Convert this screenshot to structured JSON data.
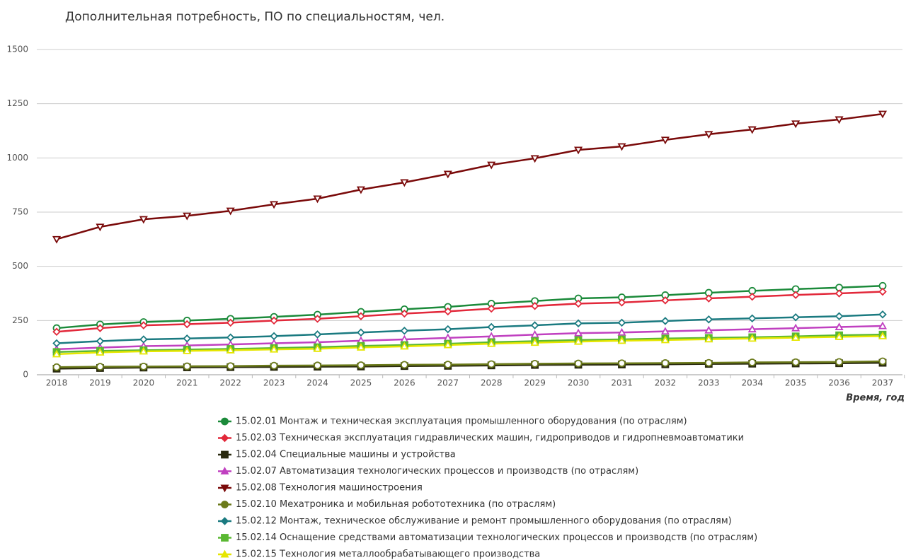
{
  "chart_data": {
    "type": "line",
    "title": "Дополнительная потребность, ПО по специальностям, чел.",
    "x_label": "Время, год",
    "categories": [
      "2018",
      "2019",
      "2020",
      "2021",
      "2022",
      "2023",
      "2024",
      "2025",
      "2026",
      "2027",
      "2028",
      "2029",
      "2030",
      "2031",
      "2032",
      "2033",
      "2034",
      "2035",
      "2036",
      "2037"
    ],
    "ylim": [
      0,
      1500
    ],
    "yticks": [
      0,
      250,
      500,
      750,
      1000,
      1250,
      1500
    ],
    "grid": true,
    "series": [
      {
        "name": "15.02.01 Монтаж и техническая эксплуатация промышленного оборудования (по отраслям)",
        "color": "#1b8a3a",
        "marker": "circle",
        "values": [
          215,
          232,
          243,
          250,
          258,
          267,
          277,
          290,
          302,
          313,
          328,
          340,
          352,
          357,
          367,
          378,
          387,
          395,
          402,
          410
        ]
      },
      {
        "name": "15.02.03 Техническая эксплуатация гидравлических машин, гидроприводов и гидропневмоавтоматики",
        "color": "#e2283a",
        "marker": "diamond",
        "values": [
          198,
          215,
          228,
          233,
          240,
          250,
          258,
          270,
          282,
          292,
          305,
          317,
          328,
          333,
          343,
          352,
          360,
          368,
          375,
          383
        ]
      },
      {
        "name": "15.02.04 Специальные машины и устройства",
        "color": "#2b2b10",
        "marker": "square",
        "values": [
          28,
          31,
          33,
          34,
          35,
          36,
          37,
          38,
          40,
          41,
          43,
          45,
          46,
          47,
          48,
          50,
          51,
          52,
          53,
          55
        ]
      },
      {
        "name": "15.02.07 Автоматизация технологических процессов и производств (по отраслям)",
        "color": "#c040c0",
        "marker": "triangle-up",
        "values": [
          118,
          125,
          132,
          135,
          140,
          145,
          150,
          157,
          163,
          170,
          177,
          185,
          192,
          195,
          200,
          205,
          210,
          215,
          220,
          225
        ]
      },
      {
        "name": "15.02.08 Технология машиностроения",
        "color": "#7a0a0a",
        "marker": "triangle-down",
        "values": [
          625,
          682,
          717,
          733,
          756,
          786,
          812,
          854,
          887,
          926,
          968,
          998,
          1037,
          1053,
          1083,
          1109,
          1131,
          1158,
          1177,
          1203
        ]
      },
      {
        "name": "15.02.10 Мехатроника и мобильная робототехника (по отраслям)",
        "color": "#6b7a1a",
        "marker": "circle",
        "values": [
          35,
          37,
          38,
          39,
          40,
          42,
          43,
          44,
          46,
          47,
          49,
          51,
          52,
          53,
          54,
          55,
          57,
          58,
          59,
          62
        ]
      },
      {
        "name": "15.02.12 Монтаж, техническое обслуживание и ремонт промышленного оборудования (по отраслям)",
        "color": "#1a7a80",
        "marker": "diamond",
        "values": [
          145,
          155,
          163,
          167,
          172,
          178,
          186,
          195,
          203,
          210,
          220,
          228,
          237,
          240,
          248,
          255,
          260,
          265,
          270,
          278
        ]
      },
      {
        "name": "15.02.14 Оснащение средствами автоматизации технологических процессов и производств (по отраслям)",
        "color": "#5ab832",
        "marker": "square",
        "values": [
          105,
          110,
          113,
          116,
          119,
          123,
          127,
          133,
          137,
          143,
          150,
          155,
          160,
          163,
          167,
          170,
          173,
          177,
          182,
          185
        ]
      },
      {
        "name": "15.02.15 Технология металлообрабатывающего производства",
        "color": "#e6e600",
        "marker": "triangle-up",
        "values": [
          95,
          103,
          108,
          110,
          113,
          117,
          120,
          126,
          131,
          137,
          143,
          148,
          153,
          157,
          160,
          164,
          167,
          171,
          175,
          178
        ]
      }
    ]
  }
}
